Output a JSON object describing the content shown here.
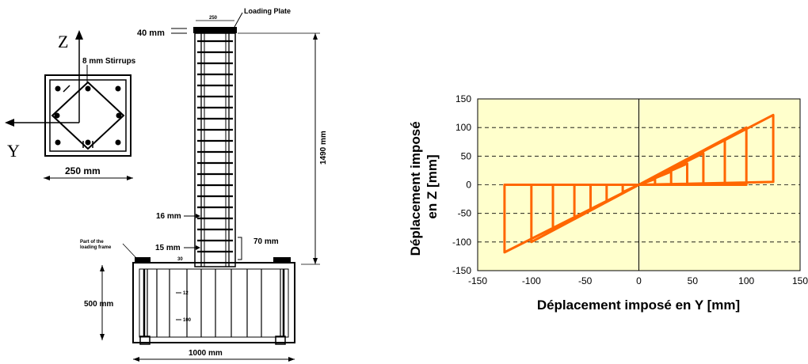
{
  "drawing": {
    "section": {
      "axis_z": "Z",
      "axis_y": "Y",
      "stirrups_label": "8 mm Stirrups",
      "width_label": "250 mm"
    },
    "elevation": {
      "loading_plate_label": "Loading Plate",
      "top_width_label": "250",
      "plate_thickness_label": "40 mm",
      "height_label": "1490 mm",
      "bar_spacing_label": "16 mm",
      "cover_label": "15 mm",
      "gap_label": "70 mm",
      "frame_note": "Part of the loading frame",
      "footing_height_label": "500 mm",
      "footing_width_label": "1000 mm",
      "footing_detail_label_1": "12",
      "footing_detail_label_2": "100",
      "column_base_label": "30"
    }
  },
  "chart_data": {
    "type": "line",
    "xlabel": "Déplacement imposé en Y [mm]",
    "ylabel": "Déplacement imposé en Z [mm]",
    "xlim": [
      -150,
      150
    ],
    "ylim": [
      -150,
      150
    ],
    "x_ticks": [
      "-150",
      "-100",
      "-50",
      "0",
      "50",
      "100",
      "150"
    ],
    "y_ticks": [
      "150",
      "100",
      "50",
      "0",
      "-50",
      "-100",
      "-150"
    ],
    "grid": "horizontal dashed",
    "plot_background": "#ffffcc",
    "line_color": "#ff6600",
    "series": [
      {
        "x": [
          0,
          125,
          125,
          0,
          -125,
          -125,
          0,
          15,
          15,
          0,
          -15,
          -15,
          0,
          30,
          30,
          0,
          -30,
          -30,
          0,
          45,
          45,
          0,
          -45,
          -45,
          0,
          60,
          60,
          0,
          -60,
          -60,
          0,
          80,
          80,
          0,
          -80,
          -80,
          0,
          100,
          100,
          0,
          -100,
          -100,
          0,
          125,
          125,
          0,
          -125,
          -125,
          0
        ],
        "y": [
          0,
          122,
          5,
          0,
          0,
          -118,
          0,
          10,
          0,
          0,
          0,
          -13,
          0,
          23,
          0,
          0,
          0,
          -30,
          0,
          37,
          0,
          0,
          0,
          -43,
          0,
          55,
          0,
          0,
          0,
          -60,
          0,
          80,
          0,
          0,
          0,
          -78,
          0,
          100,
          0,
          0,
          0,
          -100,
          0,
          122,
          5,
          0,
          0,
          -118,
          0
        ]
      }
    ]
  }
}
